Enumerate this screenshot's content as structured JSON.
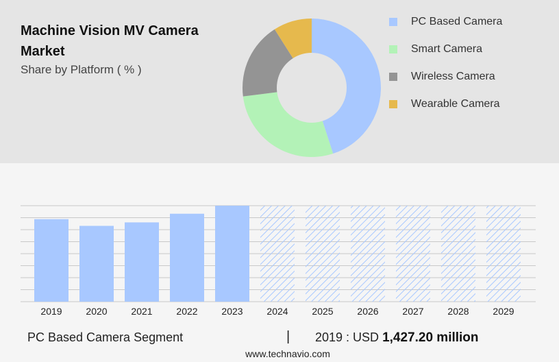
{
  "title": "Machine Vision MV Camera Market",
  "subtitle": "Share by Platform ( % )",
  "chart_data": [
    {
      "type": "pie",
      "title": "Machine Vision MV Camera Market",
      "subtitle": "Share by Platform ( % )",
      "donut": true,
      "categories": [
        "PC Based Camera",
        "Smart Camera",
        "Wireless Camera",
        "Wearable Camera"
      ],
      "values": [
        45,
        28,
        18,
        9
      ],
      "colors": [
        "#a8c8ff",
        "#b3f2b7",
        "#949494",
        "#e6b94d"
      ],
      "legend_position": "right"
    },
    {
      "type": "bar",
      "categories": [
        "2019",
        "2020",
        "2021",
        "2022",
        "2023",
        "2024",
        "2025",
        "2026",
        "2027",
        "2028",
        "2029"
      ],
      "values": [
        1427.2,
        1311,
        1371,
        1521,
        1660,
        null,
        null,
        null,
        null,
        null,
        null
      ],
      "forecast_categories": [
        "2024",
        "2025",
        "2026",
        "2027",
        "2028",
        "2029"
      ],
      "series_name": "PC Based Camera Segment",
      "bar_color": "#a8c8ff",
      "forecast_pattern": "hatched",
      "grid": true,
      "ylim": [
        0,
        1660
      ]
    }
  ],
  "footer": {
    "segment": "PC Based Camera Segment",
    "separator": "|",
    "value_prefix": "2019 : USD ",
    "value_bold": "1,427.20 million"
  },
  "source": "www.technavio.com"
}
